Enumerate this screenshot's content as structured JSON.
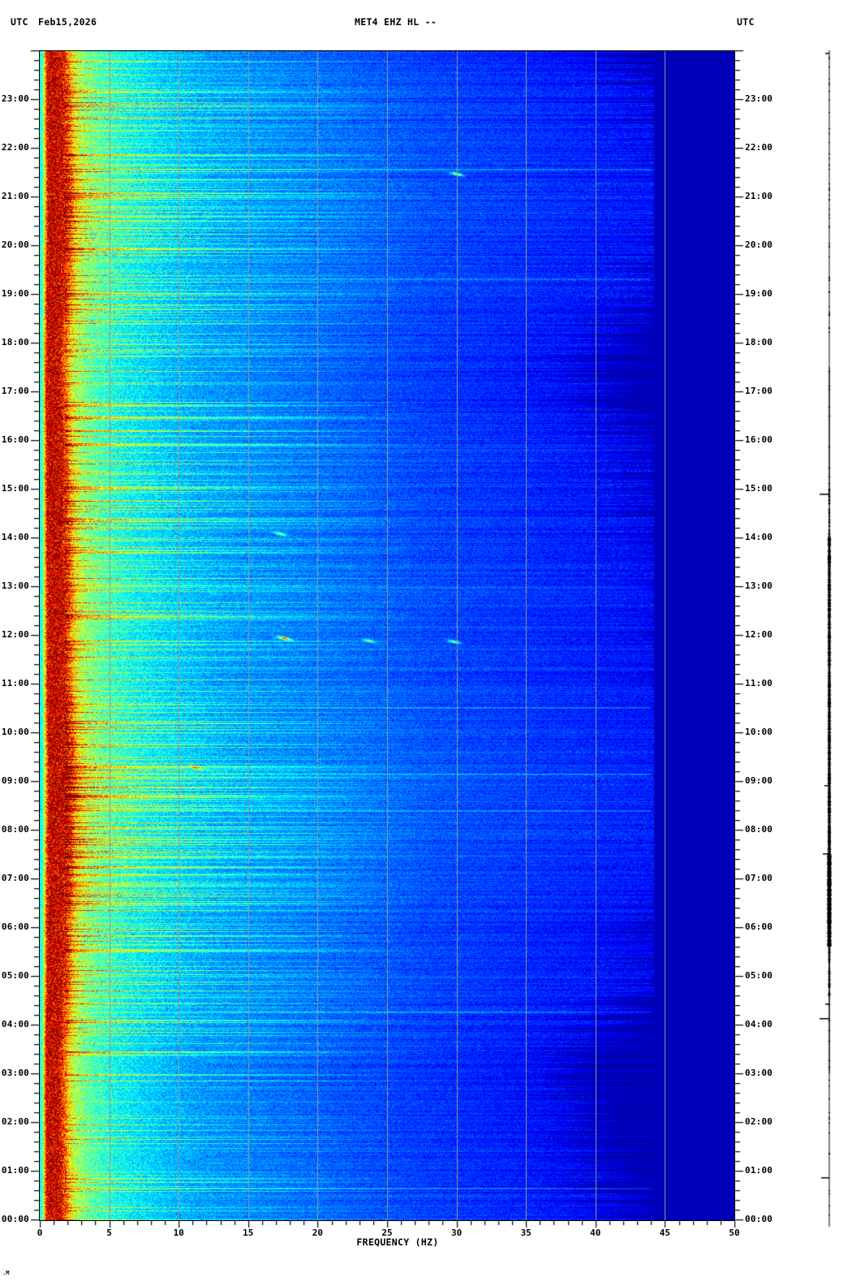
{
  "header": {
    "utc_left": "UTC",
    "date": "Feb15,2026",
    "station_title": "MET4 EHZ HL --",
    "utc_right": "UTC"
  },
  "axis": {
    "x_label": "FREQUENCY (HZ)",
    "x_tick_labels": [
      "0",
      "5",
      "10",
      "15",
      "20",
      "25",
      "30",
      "35",
      "40",
      "45",
      "50"
    ],
    "x_minor_step_hz": 1,
    "minor_ticks_per_hour": 5,
    "hour_labels_left": [
      "23:00",
      "22:00",
      "21:00",
      "20:00",
      "19:00",
      "18:00",
      "17:00",
      "16:00",
      "15:00",
      "14:00",
      "13:00",
      "12:00",
      "11:00",
      "10:00",
      "09:00",
      "08:00",
      "07:00",
      "06:00",
      "05:00",
      "04:00",
      "03:00",
      "02:00",
      "01:00",
      "00:00"
    ],
    "hour_labels_right": [
      "23:00",
      "22:00",
      "21:00",
      "20:00",
      "19:00",
      "18:00",
      "17:00",
      "16:00",
      "15:00",
      "14:00",
      "13:00",
      "12:00",
      "11:00",
      "10:00",
      "09:00",
      "08:00",
      "07:00",
      "06:00",
      "05:00",
      "04:00",
      "03:00",
      "02:00",
      "01:00",
      "00:00"
    ]
  },
  "corner_mark": ".M",
  "chart_data": {
    "type": "heatmap",
    "subtype": "seismic_spectrogram",
    "title": "MET4 EHZ HL --",
    "date_utc": "Feb15,2026",
    "xlabel": "FREQUENCY (HZ)",
    "x_range_hz": [
      0,
      50
    ],
    "y_range_hours_utc": [
      0,
      24
    ],
    "y_axis_direction": "00:00 at bottom, 24:00 at top",
    "colormap": "jet",
    "grid": "vertical only",
    "gridlines_hz": [
      5,
      10,
      15,
      20,
      25,
      30,
      35,
      40,
      45
    ],
    "grid_color": "#9a9a90",
    "uniform_level_above_hz": 44.2,
    "uniform_level": 0.055,
    "spectral_profile_hz_level": [
      [
        0,
        0.35
      ],
      [
        0.25,
        0.5
      ],
      [
        0.5,
        0.9
      ],
      [
        0.8,
        0.95
      ],
      [
        1.5,
        0.93
      ],
      [
        1.9,
        0.8
      ],
      [
        2.3,
        0.62
      ],
      [
        2.9,
        0.52
      ],
      [
        4,
        0.45
      ],
      [
        6,
        0.38
      ],
      [
        9,
        0.32
      ],
      [
        12,
        0.28
      ],
      [
        18,
        0.24
      ],
      [
        25,
        0.2
      ],
      [
        32,
        0.17
      ],
      [
        40,
        0.13
      ],
      [
        43,
        0.07
      ],
      [
        44.2,
        0.055
      ],
      [
        50,
        0.055
      ]
    ],
    "noise_amp_hz": [
      [
        0,
        0.06
      ],
      [
        0.4,
        0.16
      ],
      [
        0.8,
        0.2
      ],
      [
        1.6,
        0.2
      ],
      [
        2.5,
        0.13
      ],
      [
        4,
        0.1
      ],
      [
        8,
        0.08
      ],
      [
        15,
        0.06
      ],
      [
        30,
        0.05
      ],
      [
        40,
        0.05
      ],
      [
        43,
        0.03
      ],
      [
        44.2,
        0
      ],
      [
        50,
        0
      ]
    ],
    "hourly_band_width_factor": [
      1.0,
      0.95,
      0.93,
      0.9,
      0.95,
      1.08,
      1.05,
      1.15,
      1.2,
      1.25,
      1.2,
      1.12,
      1.1,
      1.1,
      1.08,
      1.05,
      1.02,
      0.95,
      0.95,
      1.05,
      1.1,
      1.15,
      1.1,
      1.05,
      1.0
    ],
    "streak_probability_by_hour": [
      0.15,
      0.12,
      0.12,
      0.12,
      0.2,
      0.25,
      0.25,
      0.45,
      0.5,
      0.5,
      0.35,
      0.25,
      0.25,
      0.25,
      0.3,
      0.25,
      0.2,
      0.15,
      0.2,
      0.35,
      0.35,
      0.4,
      0.3,
      0.25,
      0.2
    ],
    "full_width_streaks": [
      {
        "utc": "00:40",
        "boost": 0.1
      },
      {
        "utc": "04:17",
        "boost": 0.14
      },
      {
        "utc": "08:25",
        "boost": 0.1
      },
      {
        "utc": "09:10",
        "boost": 0.1
      },
      {
        "utc": "10:32",
        "boost": 0.12
      },
      {
        "utc": "13:00",
        "boost": 0.08
      },
      {
        "utc": "19:20",
        "boost": 0.09
      },
      {
        "utc": "21:35",
        "boost": 0.09
      }
    ],
    "events": [
      {
        "utc": "11:57",
        "hz": 17.6,
        "strength": 0.55
      },
      {
        "utc": "11:54",
        "hz": 23.7,
        "strength": 0.3
      },
      {
        "utc": "11:53",
        "hz": 29.8,
        "strength": 0.35
      },
      {
        "utc": "14:06",
        "hz": 17.3,
        "strength": 0.3
      },
      {
        "utc": "21:29",
        "hz": 30.0,
        "strength": 0.4
      },
      {
        "utc": "09:18",
        "hz": 11.2,
        "strength": 0.3
      }
    ]
  },
  "right_trace": {
    "description": "daily amplitude trace",
    "color": "#000000",
    "segments_t_hours": [
      {
        "t0": 24.0,
        "t1": 17.5,
        "w": 1
      },
      {
        "t0": 17.5,
        "t1": 15.0,
        "w": 1.5
      },
      {
        "t0": 15.0,
        "t1": 14.0,
        "w": 2
      },
      {
        "t0": 14.0,
        "t1": 7.5,
        "w": 3.5
      },
      {
        "t0": 7.5,
        "t1": 5.6,
        "w": 5
      },
      {
        "t0": 5.6,
        "t1": 4.6,
        "w": 2.5
      },
      {
        "t0": 4.6,
        "t1": 3.0,
        "w": 1.5
      },
      {
        "t0": 3.0,
        "t1": -0.15,
        "w": 1
      }
    ],
    "ticks_t_hours": [
      {
        "t": 23.95,
        "len": 5
      },
      {
        "t": 14.9,
        "len": 12
      },
      {
        "t": 8.92,
        "len": 6
      },
      {
        "t": 7.52,
        "len": 8
      },
      {
        "t": 4.44,
        "len": 5
      },
      {
        "t": 4.14,
        "len": 12
      },
      {
        "t": 0.87,
        "len": 10
      }
    ]
  }
}
